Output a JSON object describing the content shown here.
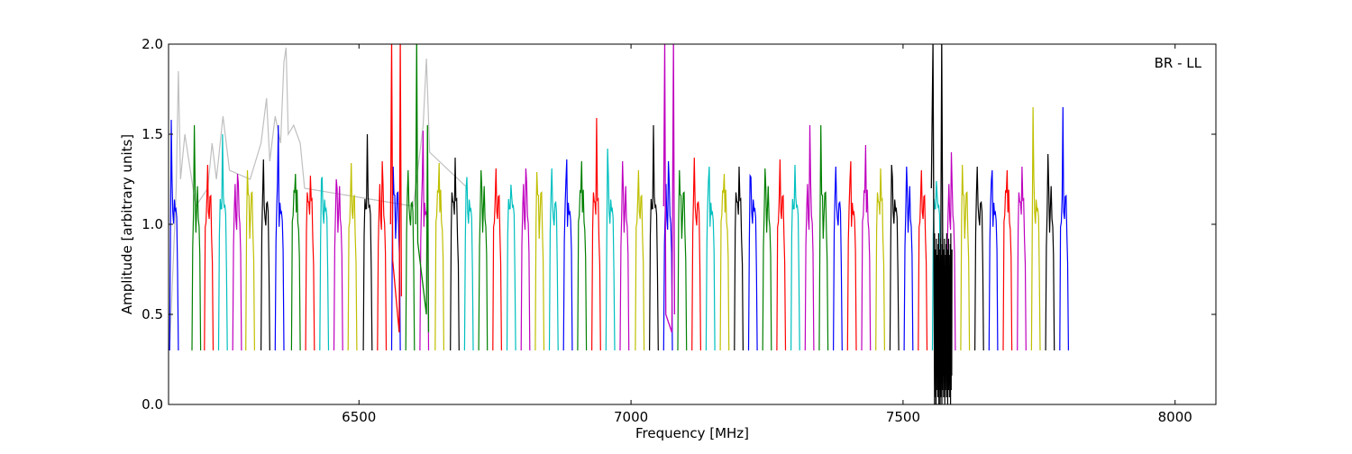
{
  "chart_data": {
    "type": "line",
    "annotation": "BR - LL",
    "xlabel": "Frequency [MHz]",
    "ylabel": "Amplitude [arbitrary units]",
    "xlim": [
      6150,
      8075
    ],
    "ylim": [
      0.0,
      2.0
    ],
    "x_ticks": [
      6500,
      7000,
      7500,
      8000
    ],
    "x_tick_labels": [
      "6500",
      "7000",
      "7500",
      "8000"
    ],
    "y_ticks": [
      0.0,
      0.5,
      1.0,
      1.5,
      2.0
    ],
    "y_tick_labels": [
      "0.0",
      "0.5",
      "1.0",
      "1.5",
      "2.0"
    ],
    "grid": false,
    "band_width_mhz": 16,
    "background": {
      "name": "raw",
      "color": "#bfbfbf",
      "x": [
        6152,
        6164,
        6168,
        6172,
        6180,
        6200,
        6222,
        6230,
        6238,
        6250,
        6262,
        6300,
        6320,
        6330,
        6336,
        6346,
        6356,
        6362,
        6366,
        6370,
        6380,
        6392,
        6400,
        6600,
        6618,
        6624,
        6630,
        6700
      ],
      "y": [
        0.3,
        1.2,
        1.85,
        1.25,
        1.5,
        1.1,
        1.2,
        1.45,
        1.25,
        1.6,
        1.3,
        1.25,
        1.45,
        1.7,
        1.35,
        1.6,
        1.45,
        1.9,
        1.98,
        1.5,
        1.55,
        1.45,
        1.2,
        1.1,
        1.55,
        1.92,
        1.4,
        1.2
      ]
    },
    "series": [
      {
        "color": "#0000ff",
        "x0": 6152,
        "peak": 1.58
      },
      {
        "color": "#008000",
        "x0": 6193,
        "peak": 1.55
      },
      {
        "color": "#ff0000",
        "x0": 6216,
        "peak": 1.33
      },
      {
        "color": "#00bfbf",
        "x0": 6242,
        "peak": 1.5
      },
      {
        "color": "#bf00bf",
        "x0": 6268,
        "peak": 1.28
      },
      {
        "color": "#bfbf00",
        "x0": 6292,
        "peak": 1.3
      },
      {
        "color": "#000000",
        "x0": 6320,
        "peak": 1.36
      },
      {
        "color": "#0000ff",
        "x0": 6346,
        "peak": 1.55
      },
      {
        "color": "#008000",
        "x0": 6376,
        "peak": 1.28
      },
      {
        "color": "#ff0000",
        "x0": 6402,
        "peak": 1.27
      },
      {
        "color": "#00bfbf",
        "x0": 6428,
        "peak": 1.25
      },
      {
        "color": "#bf00bf",
        "x0": 6454,
        "peak": 1.25
      },
      {
        "color": "#bfbf00",
        "x0": 6480,
        "peak": 1.34
      },
      {
        "color": "#000000",
        "x0": 6508,
        "peak": 1.5
      },
      {
        "color": "#ff0000",
        "x0": 6534,
        "peak": 1.35
      },
      {
        "color": "#0000ff",
        "x0": 6560,
        "peak": 1.32
      },
      {
        "color": "#008000",
        "x0": 6586,
        "peak": 1.3
      },
      {
        "color": "#bf00bf",
        "x0": 6612,
        "peak": 1.52
      },
      {
        "color": "#bfbf00",
        "x0": 6640,
        "peak": 1.34
      },
      {
        "color": "#000000",
        "x0": 6668,
        "peak": 1.37
      },
      {
        "color": "#00bfbf",
        "x0": 6694,
        "peak": 1.2
      },
      {
        "color": "#008000",
        "x0": 6720,
        "peak": 1.3
      },
      {
        "color": "#ff0000",
        "x0": 6746,
        "peak": 1.31
      },
      {
        "color": "#00bfbf",
        "x0": 6772,
        "peak": 1.22
      },
      {
        "color": "#bf00bf",
        "x0": 6798,
        "peak": 1.31
      },
      {
        "color": "#bfbf00",
        "x0": 6824,
        "peak": 1.29
      },
      {
        "color": "#00bfbf",
        "x0": 6850,
        "peak": 1.31
      },
      {
        "color": "#0000ff",
        "x0": 6876,
        "peak": 1.36
      },
      {
        "color": "#008000",
        "x0": 6902,
        "peak": 1.35
      },
      {
        "color": "#ff0000",
        "x0": 6928,
        "peak": 1.59
      },
      {
        "color": "#00bfbf",
        "x0": 6954,
        "peak": 1.42
      },
      {
        "color": "#bf00bf",
        "x0": 6980,
        "peak": 1.35
      },
      {
        "color": "#bfbf00",
        "x0": 7008,
        "peak": 1.3
      },
      {
        "color": "#000000",
        "x0": 7034,
        "peak": 1.55
      },
      {
        "color": "#0000ff",
        "x0": 7060,
        "peak": 1.35
      },
      {
        "color": "#008000",
        "x0": 7086,
        "peak": 1.3
      },
      {
        "color": "#ff0000",
        "x0": 7112,
        "peak": 1.37
      },
      {
        "color": "#00bfbf",
        "x0": 7138,
        "peak": 1.32
      },
      {
        "color": "#bfbf00",
        "x0": 7164,
        "peak": 1.28
      },
      {
        "color": "#000000",
        "x0": 7190,
        "peak": 1.32
      },
      {
        "color": "#0000ff",
        "x0": 7216,
        "peak": 1.27
      },
      {
        "color": "#008000",
        "x0": 7242,
        "peak": 1.31
      },
      {
        "color": "#ff0000",
        "x0": 7268,
        "peak": 1.36
      },
      {
        "color": "#00bfbf",
        "x0": 7294,
        "peak": 1.33
      },
      {
        "color": "#bf00bf",
        "x0": 7320,
        "peak": 1.55
      },
      {
        "color": "#008000",
        "x0": 7346,
        "peak": 1.55
      },
      {
        "color": "#0000ff",
        "x0": 7372,
        "peak": 1.32
      },
      {
        "color": "#ff0000",
        "x0": 7398,
        "peak": 1.35
      },
      {
        "color": "#bf00bf",
        "x0": 7424,
        "peak": 1.44
      },
      {
        "color": "#bfbf00",
        "x0": 7450,
        "peak": 1.31
      },
      {
        "color": "#000000",
        "x0": 7476,
        "peak": 1.33
      },
      {
        "color": "#0000ff",
        "x0": 7502,
        "peak": 1.32
      },
      {
        "color": "#ff0000",
        "x0": 7528,
        "peak": 1.3
      },
      {
        "color": "#00bfbf",
        "x0": 7554,
        "peak": 1.24
      },
      {
        "color": "#bf00bf",
        "x0": 7580,
        "peak": 1.4
      },
      {
        "color": "#bfbf00",
        "x0": 7606,
        "peak": 1.33
      },
      {
        "color": "#000000",
        "x0": 7632,
        "peak": 1.32
      },
      {
        "color": "#0000ff",
        "x0": 7658,
        "peak": 1.3
      },
      {
        "color": "#ff0000",
        "x0": 7684,
        "peak": 1.3
      },
      {
        "color": "#bf00bf",
        "x0": 7710,
        "peak": 1.32
      },
      {
        "color": "#bfbf00",
        "x0": 7736,
        "peak": 1.65
      },
      {
        "color": "#000000",
        "x0": 7762,
        "peak": 1.39
      },
      {
        "color": "#0000ff",
        "x0": 7788,
        "peak": 1.65
      }
    ],
    "spikes": [
      {
        "color": "#ff0000",
        "x": [
          6558,
          6560,
          6562,
          6574,
          6576,
          6578
        ],
        "y": [
          1.0,
          2.0,
          0.8,
          0.4,
          2.0,
          0.6
        ]
      },
      {
        "color": "#008000",
        "x": [
          6604,
          6606,
          6608,
          6624,
          6626,
          6628
        ],
        "y": [
          1.0,
          2.0,
          0.9,
          0.5,
          1.55,
          0.4
        ]
      },
      {
        "color": "#bf00bf",
        "x": [
          7060,
          7062,
          7064,
          7075,
          7078,
          7080
        ],
        "y": [
          1.1,
          2.0,
          0.5,
          0.4,
          2.0,
          0.5
        ]
      },
      {
        "color": "#000000",
        "x": [
          7552,
          7555,
          7558,
          7568,
          7571,
          7574
        ],
        "y": [
          1.2,
          2.0,
          0.0,
          0.0,
          2.0,
          0.2
        ]
      }
    ],
    "noise_region": {
      "color": "#000000",
      "x": [
        7558,
        7590
      ],
      "y_min": 0.0,
      "y_max": 0.95
    }
  }
}
